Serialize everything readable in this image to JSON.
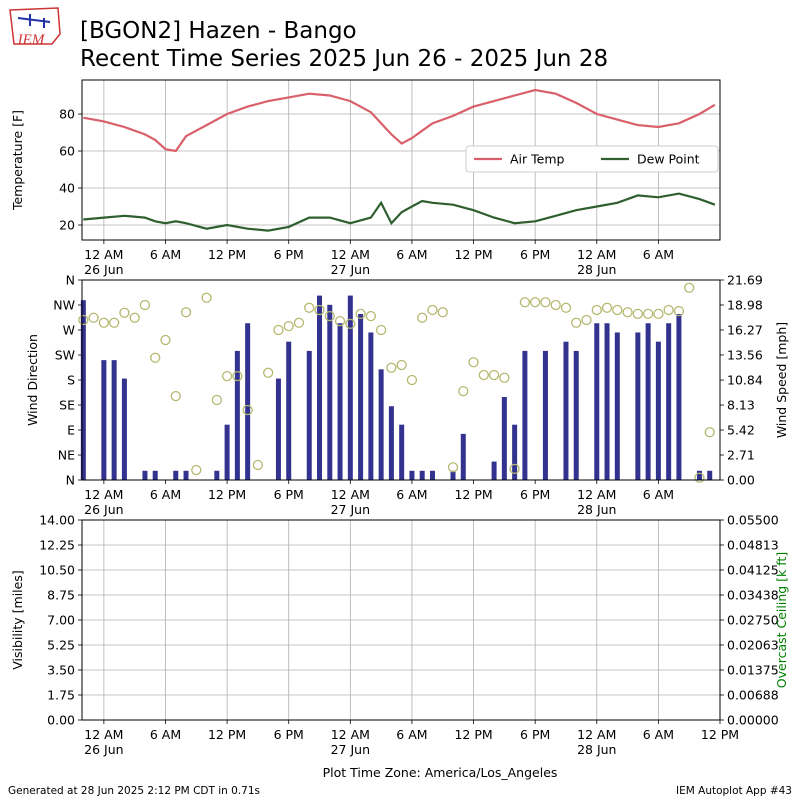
{
  "header": {
    "title": "[BGON2] Hazen - Bango",
    "subtitle": "Recent Time Series 2025 Jun 26 - 2025 Jun 28",
    "logo": "IEM"
  },
  "footer": {
    "left": "Generated at 28 Jun 2025 2:12 PM CDT in 0.71s",
    "right": "IEM Autoplot App #43"
  },
  "chart_data": [
    {
      "type": "line",
      "ylabel": "Temperature [F]",
      "grid": true,
      "legend": "center right",
      "xlim": [
        -2.13,
        60
      ],
      "ylim": [
        11.9,
        98.4
      ],
      "yticks": [
        20,
        40,
        60,
        80
      ],
      "xticks": [
        {
          "value": 0,
          "label": "12 AM\n26 Jun"
        },
        {
          "value": 6,
          "label": "6 AM"
        },
        {
          "value": 12,
          "label": "12 PM"
        },
        {
          "value": 18,
          "label": "6 PM"
        },
        {
          "value": 24,
          "label": "12 AM\n27 Jun"
        },
        {
          "value": 30,
          "label": "6 AM"
        },
        {
          "value": 36,
          "label": "12 PM"
        },
        {
          "value": 42,
          "label": "6 PM"
        },
        {
          "value": 48,
          "label": "12 AM\n28 Jun"
        },
        {
          "value": 54,
          "label": "6 AM"
        }
      ],
      "x": [
        -2,
        0,
        2,
        4,
        5,
        6,
        7,
        8,
        10,
        12,
        14,
        16,
        18,
        20,
        22,
        24,
        26,
        27,
        28,
        29,
        30,
        31,
        32,
        34,
        36,
        38,
        40,
        42,
        44,
        46,
        48,
        50,
        52,
        54,
        56,
        58,
        59.5
      ],
      "series": [
        {
          "name": "Air Temp",
          "color": "#d9606a",
          "values": [
            78,
            76,
            73,
            69,
            66,
            61,
            60,
            68,
            74,
            80,
            84,
            87,
            89,
            91,
            90,
            87,
            81,
            75,
            69,
            64,
            67,
            71,
            75,
            79,
            84,
            87,
            90,
            93,
            91,
            86,
            80,
            77,
            74,
            73,
            75,
            80,
            85
          ]
        },
        {
          "name": "Dew Point",
          "color": "#2f5f2f",
          "values": [
            23,
            24,
            25,
            24,
            22,
            21,
            22,
            21,
            18,
            20,
            18,
            17,
            19,
            24,
            24,
            21,
            24,
            32,
            21,
            27,
            30,
            33,
            32,
            31,
            28,
            24,
            21,
            22,
            25,
            28,
            30,
            32,
            36,
            35,
            37,
            34,
            31
          ]
        }
      ]
    },
    {
      "type": "combo",
      "ylabel": "Wind Direction",
      "y2label": "Wind Speed [mph]",
      "grid": false,
      "xlim": [
        -2.13,
        60
      ],
      "ylim": [
        0,
        360
      ],
      "y2lim": [
        0,
        21.69
      ],
      "yticks": [
        {
          "value": 0,
          "label": "N"
        },
        {
          "value": 45,
          "label": "NE"
        },
        {
          "value": 90,
          "label": "E"
        },
        {
          "value": 135,
          "label": "SE"
        },
        {
          "value": 180,
          "label": "S"
        },
        {
          "value": 225,
          "label": "SW"
        },
        {
          "value": 270,
          "label": "W"
        },
        {
          "value": 315,
          "label": "NW"
        },
        {
          "value": 360,
          "label": "N"
        }
      ],
      "y2ticks": [
        {
          "value": 0,
          "label": "0.00"
        },
        2.71,
        5.42,
        8.13,
        10.84,
        13.56,
        16.27,
        18.98,
        21.69
      ],
      "xticks": [
        {
          "value": 0,
          "label": "12 AM\n26 Jun"
        },
        {
          "value": 6,
          "label": "6 AM"
        },
        {
          "value": 12,
          "label": "12 PM"
        },
        {
          "value": 18,
          "label": "6 PM"
        },
        {
          "value": 24,
          "label": "12 AM\n27 Jun"
        },
        {
          "value": 30,
          "label": "6 AM"
        },
        {
          "value": 36,
          "label": "12 PM"
        },
        {
          "value": 42,
          "label": "6 PM"
        },
        {
          "value": 48,
          "label": "12 AM\n28 Jun"
        },
        {
          "value": 54,
          "label": "6 AM"
        }
      ],
      "x": [
        -2,
        -1,
        0,
        1,
        2,
        3,
        4,
        5,
        6,
        7,
        8,
        9,
        10,
        11,
        12,
        13,
        14,
        15,
        16,
        17,
        18,
        19,
        20,
        21,
        22,
        23,
        24,
        25,
        26,
        27,
        28,
        29,
        30,
        31,
        32,
        33,
        34,
        35,
        36,
        37,
        38,
        39,
        40,
        41,
        42,
        43,
        44,
        45,
        46,
        47,
        48,
        49,
        50,
        51,
        52,
        53,
        54,
        55,
        56,
        57,
        58,
        59
      ],
      "series": [
        {
          "type": "bar",
          "axis": "y2",
          "color": "#33338f",
          "values": [
            19.5,
            0,
            13,
            13,
            11,
            0,
            1,
            1,
            0,
            1,
            1,
            0,
            0,
            1,
            6,
            14,
            17,
            0,
            0,
            11,
            15,
            0,
            14,
            20,
            19,
            17,
            20,
            18,
            16,
            12,
            8,
            6,
            1,
            1,
            1,
            0,
            1,
            5,
            0,
            0,
            2,
            9,
            6,
            14,
            0,
            14,
            0,
            15,
            14,
            0,
            17,
            17,
            16,
            0,
            16,
            17,
            15,
            17,
            18,
            0,
            1,
            1
          ]
        },
        {
          "type": "scatter",
          "color": "#b5b86f",
          "values": [
            288,
            292,
            283,
            283,
            301,
            292,
            315,
            220,
            252,
            151,
            302,
            18,
            328,
            144,
            187,
            187,
            126,
            27,
            193,
            270,
            277,
            283,
            310,
            306,
            295,
            286,
            281,
            299,
            295,
            270,
            202,
            207,
            180,
            292,
            306,
            302,
            23,
            160,
            212,
            189,
            189,
            184,
            20,
            320,
            320,
            320,
            315,
            310,
            283,
            288,
            306,
            310,
            306,
            302,
            299,
            299,
            299,
            306,
            304,
            346,
            4,
            86
          ]
        }
      ]
    },
    {
      "type": "line",
      "ylabel": "Visibility [miles]",
      "y2label": "Overcast Ceiling [k ft]",
      "y2label_color": "#008000",
      "xlabel": "Plot Time Zone: America/Los_Angeles",
      "grid": true,
      "xlim": [
        -2.13,
        60
      ],
      "ylim": [
        0,
        14
      ],
      "y2lim": [
        0,
        0.055
      ],
      "yticks": [
        {
          "value": 0,
          "label": "0.00"
        },
        1.75,
        {
          "value": 3.5,
          "label": "3.50"
        },
        5.25,
        {
          "value": 7,
          "label": "7.00"
        },
        8.75,
        {
          "value": 10.5,
          "label": "10.50"
        },
        12.25,
        {
          "value": 14,
          "label": "14.00"
        }
      ],
      "y2ticks": [
        {
          "value": 0,
          "label": "0.00000"
        },
        {
          "value": 0.00688,
          "label": "0.00688"
        },
        {
          "value": 0.01375,
          "label": "0.01375"
        },
        {
          "value": 0.02063,
          "label": "0.02063"
        },
        {
          "value": 0.0275,
          "label": "0.02750"
        },
        {
          "value": 0.03438,
          "label": "0.03438"
        },
        {
          "value": 0.04125,
          "label": "0.04125"
        },
        {
          "value": 0.04813,
          "label": "0.04813"
        },
        {
          "value": 0.055,
          "label": "0.05500"
        }
      ],
      "xticks": [
        {
          "value": 0,
          "label": "12 AM\n26 Jun"
        },
        {
          "value": 6,
          "label": "6 AM"
        },
        {
          "value": 12,
          "label": "12 PM"
        },
        {
          "value": 18,
          "label": "6 PM"
        },
        {
          "value": 24,
          "label": "12 AM\n27 Jun"
        },
        {
          "value": 30,
          "label": "6 AM"
        },
        {
          "value": 36,
          "label": "12 PM"
        },
        {
          "value": 42,
          "label": "6 PM"
        },
        {
          "value": 48,
          "label": "12 AM\n28 Jun"
        },
        {
          "value": 54,
          "label": "6 AM"
        },
        {
          "value": 60,
          "label": "12 PM"
        }
      ]
    }
  ]
}
